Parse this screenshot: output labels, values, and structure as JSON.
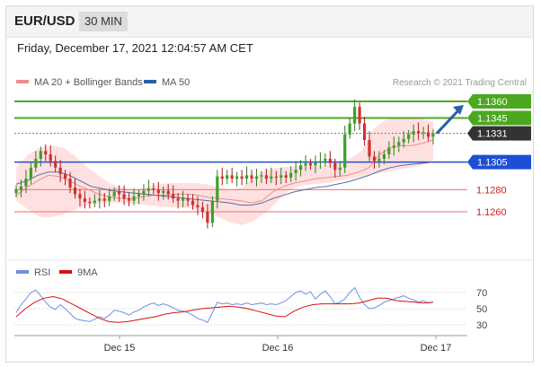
{
  "header": {
    "pair": "EUR/USD",
    "timeframe": "30 MIN"
  },
  "datetime": "Friday, December 17, 2021 12:04:57 AM CET",
  "legend": {
    "ma20": "MA 20 + Bollinger Bands",
    "ma50": "MA 50",
    "credit": "Research © 2021 Trading Central",
    "rsi": "RSI",
    "ma9": "9MA"
  },
  "colors": {
    "resistance": "#4ca81e",
    "pivot": "#1d4fd6",
    "support": "#e88a8a",
    "support_label": "#d02020",
    "current_bg": "#333333",
    "bollinger": "#ffd6d6",
    "ma20": "#f08a8a",
    "ma50": "#5a6aa8",
    "rsi": "#6f8ee6",
    "ma9": "#d81010",
    "arrow": "#2a5ea8"
  },
  "chart_data": [
    {
      "type": "candlestick",
      "levels": [
        {
          "value": 1.136,
          "label": "1.1360",
          "kind": "resistance"
        },
        {
          "value": 1.1345,
          "label": "1.1345",
          "kind": "resistance"
        },
        {
          "value": 1.1331,
          "label": "1.1331",
          "kind": "current"
        },
        {
          "value": 1.1305,
          "label": "1.1305",
          "kind": "pivot"
        },
        {
          "value": 1.128,
          "label": "1.1280",
          "kind": "support"
        },
        {
          "value": 1.126,
          "label": "1.1260",
          "kind": "support"
        }
      ],
      "x_ticks": [
        "Dec 15",
        "Dec 16",
        "Dec 17"
      ],
      "close_path": [
        1.128,
        1.1283,
        1.129,
        1.13,
        1.1308,
        1.1315,
        1.1312,
        1.1306,
        1.13,
        1.1294,
        1.129,
        1.1282,
        1.1276,
        1.1272,
        1.1269,
        1.1268,
        1.127,
        1.1272,
        1.127,
        1.1274,
        1.1278,
        1.1276,
        1.1272,
        1.127,
        1.1274,
        1.1276,
        1.1279,
        1.1281,
        1.128,
        1.1277,
        1.1279,
        1.1276,
        1.1272,
        1.127,
        1.1272,
        1.127,
        1.1266,
        1.1264,
        1.126,
        1.125,
        1.127,
        1.1292,
        1.129,
        1.1293,
        1.129,
        1.1292,
        1.129,
        1.1293,
        1.129,
        1.1292,
        1.1293,
        1.129,
        1.1292,
        1.1291,
        1.1293,
        1.1291,
        1.1295,
        1.1298,
        1.1302,
        1.1304,
        1.1302,
        1.1305,
        1.1306,
        1.1308,
        1.1304,
        1.1298,
        1.13,
        1.133,
        1.134,
        1.1355,
        1.134,
        1.1325,
        1.131,
        1.1306,
        1.1308,
        1.1312,
        1.1318,
        1.132,
        1.1323,
        1.1326,
        1.133,
        1.1333,
        1.1331,
        1.1332,
        1.1328,
        1.1331
      ],
      "ma20_path": [
        1.1275,
        1.1282,
        1.1288,
        1.1293,
        1.1292,
        1.1288,
        1.1283,
        1.1279,
        1.1275,
        1.1273,
        1.1272,
        1.1272,
        1.1274,
        1.1275,
        1.1275,
        1.1276,
        1.1276,
        1.1275,
        1.1273,
        1.1272,
        1.1271,
        1.127,
        1.1268,
        1.127,
        1.1278,
        1.1283,
        1.1286,
        1.1288,
        1.129,
        1.1291,
        1.1292,
        1.1293,
        1.1296,
        1.13,
        1.1312,
        1.1318,
        1.132,
        1.132,
        1.1322,
        1.1325
      ],
      "ma50_path": [
        1.1285,
        1.1288,
        1.1293,
        1.1296,
        1.1296,
        1.1293,
        1.1288,
        1.1283,
        1.1281,
        1.1279,
        1.1278,
        1.1277,
        1.1276,
        1.1275,
        1.1274,
        1.1273,
        1.1272,
        1.1271,
        1.127,
        1.1269,
        1.1268,
        1.1266,
        1.1266,
        1.1268,
        1.1272,
        1.1275,
        1.1278,
        1.128,
        1.1282,
        1.1283,
        1.1285,
        1.1287,
        1.129,
        1.1293,
        1.1297,
        1.13,
        1.1302,
        1.1303,
        1.1304,
        1.1305
      ],
      "bollinger_upper": [
        1.13,
        1.1312,
        1.1318,
        1.132,
        1.1318,
        1.131,
        1.13,
        1.1292,
        1.1285,
        1.1282,
        1.128,
        1.1282,
        1.1285,
        1.1286,
        1.1286,
        1.1286,
        1.1285,
        1.1282,
        1.128,
        1.1282,
        1.1292,
        1.1298,
        1.13,
        1.1301,
        1.1302,
        1.1302,
        1.1302,
        1.1305,
        1.1308,
        1.1315,
        1.1335,
        1.1343,
        1.1345,
        1.1345,
        1.1344,
        1.1342
      ],
      "bollinger_lower": [
        1.127,
        1.1262,
        1.1255,
        1.1255,
        1.1258,
        1.1262,
        1.1266,
        1.1268,
        1.1268,
        1.1268,
        1.1267,
        1.1266,
        1.1265,
        1.1264,
        1.1264,
        1.1262,
        1.126,
        1.1255,
        1.125,
        1.1248,
        1.1252,
        1.126,
        1.127,
        1.128,
        1.1284,
        1.1285,
        1.1286,
        1.1288,
        1.129,
        1.1292,
        1.1294,
        1.1296,
        1.1298,
        1.13,
        1.1302,
        1.1305
      ],
      "projection": {
        "from": 1.1331,
        "to": 1.136
      }
    },
    {
      "type": "line",
      "y_ticks": [
        70,
        50,
        30
      ],
      "ylim": [
        20,
        80
      ],
      "series": [
        {
          "name": "RSI",
          "values": [
            45,
            55,
            62,
            70,
            73,
            66,
            58,
            52,
            49,
            55,
            50,
            44,
            38,
            36,
            35,
            34,
            37,
            40,
            38,
            42,
            48,
            47,
            45,
            42,
            46,
            48,
            52,
            55,
            57,
            54,
            56,
            54,
            51,
            48,
            47,
            45,
            42,
            38,
            36,
            33,
            45,
            58,
            56,
            57,
            55,
            56,
            55,
            57,
            55,
            56,
            57,
            55,
            56,
            55,
            57,
            60,
            65,
            70,
            72,
            68,
            71,
            62,
            68,
            72,
            65,
            56,
            58,
            62,
            70,
            76,
            64,
            55,
            50,
            51,
            54,
            58,
            60,
            62,
            64,
            66,
            63,
            61,
            58,
            60,
            57,
            58
          ]
        },
        {
          "name": "9MA",
          "values": [
            40,
            50,
            58,
            63,
            65,
            62,
            56,
            50,
            44,
            38,
            34,
            33,
            34,
            36,
            38,
            40,
            43,
            45,
            46,
            48,
            50,
            51,
            52,
            53,
            52,
            50,
            47,
            44,
            41,
            40,
            47,
            52,
            55,
            56,
            56,
            56,
            56,
            57,
            60,
            63,
            63,
            60,
            59,
            58,
            57,
            58
          ]
        }
      ]
    }
  ]
}
